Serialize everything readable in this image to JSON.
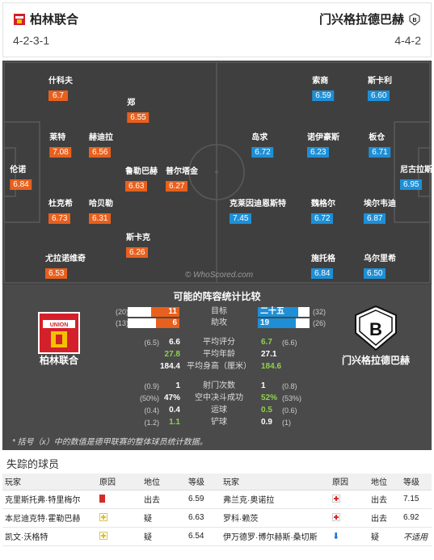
{
  "header": {
    "home_team": "柏林联合",
    "away_team": "门兴格拉德巴赫",
    "home_formation": "4-2-3-1",
    "away_formation": "4-4-2"
  },
  "pitch": {
    "watermark": "© WhoScored.com",
    "home_players": [
      {
        "name": "什科夫",
        "rating": "6.7"
      },
      {
        "name": "郑",
        "rating": "6.55"
      },
      {
        "name": "莱特",
        "rating": "7.08"
      },
      {
        "name": "赫迪拉",
        "rating": "6.56"
      },
      {
        "name": "伦诺",
        "rating": "6.84"
      },
      {
        "name": "鲁勒巴赫",
        "rating": "6.63"
      },
      {
        "name": "普尔塔金",
        "rating": "6.27"
      },
      {
        "name": "杜克希",
        "rating": "6.73"
      },
      {
        "name": "哈贝勒",
        "rating": "6.31"
      },
      {
        "name": "斯卡克",
        "rating": "6.26"
      },
      {
        "name": "尤拉诺维奇",
        "rating": "6.53"
      }
    ],
    "away_players": [
      {
        "name": "索商",
        "rating": "6.59"
      },
      {
        "name": "斯卡利",
        "rating": "6.60"
      },
      {
        "name": "岛求",
        "rating": "6.72"
      },
      {
        "name": "诺伊豪斯",
        "rating": "6.23"
      },
      {
        "name": "板仓",
        "rating": "6.71"
      },
      {
        "name": "尼古拉斯",
        "rating": "6.95"
      },
      {
        "name": "克莱因迪恩斯特",
        "rating": "7.45"
      },
      {
        "name": "魏格尔",
        "rating": "6.72"
      },
      {
        "name": "埃尔韦迪",
        "rating": "6.87"
      },
      {
        "name": "施托格",
        "rating": "6.84"
      },
      {
        "name": "乌尔里希",
        "rating": "6.50"
      }
    ]
  },
  "comparison": {
    "title": "可能的阵容统计比较",
    "home_label": "柏林联合",
    "away_label": "门兴格拉德巴赫",
    "bar_rows": [
      {
        "label": "目标",
        "home_paren": "(20)",
        "home_value": "11",
        "home_fraction": 0.55,
        "away_value": "二十五",
        "away_paren": "(32)",
        "away_fraction": 0.78
      },
      {
        "label": "助攻",
        "home_paren": "(13)",
        "home_value": "6",
        "home_fraction": 0.46,
        "away_value": "19",
        "away_paren": "(26)",
        "away_fraction": 0.73
      }
    ],
    "stat_rows": [
      {
        "label": "平均评分",
        "home_paren": "(6.5)",
        "home_value": "6.6",
        "home_green": false,
        "away_value": "6.7",
        "away_paren": "(6.6)",
        "away_green": true
      },
      {
        "label": "平均年龄",
        "home_paren": "",
        "home_value": "27.8",
        "home_green": true,
        "away_value": "27.1",
        "away_paren": "",
        "away_green": false
      },
      {
        "label": "平均身高（厘米）",
        "home_paren": "",
        "home_value": "184.4",
        "home_green": false,
        "away_value": "184.6",
        "away_paren": "",
        "away_green": true
      },
      {
        "label": "射门次数",
        "home_paren": "(0.9)",
        "home_value": "1",
        "home_green": false,
        "away_value": "1",
        "away_paren": "(0.8)",
        "away_green": false
      },
      {
        "label": "空中决斗成功",
        "home_paren": "(50%)",
        "home_value": "47%",
        "home_green": false,
        "away_value": "52%",
        "away_paren": "(53%)",
        "away_green": true
      },
      {
        "label": "运球",
        "home_paren": "(0.4)",
        "home_value": "0.4",
        "home_green": false,
        "away_value": "0.5",
        "away_paren": "(0.6)",
        "away_green": true
      },
      {
        "label": "铲球",
        "home_paren": "(1.2)",
        "home_value": "1.1",
        "home_green": true,
        "away_value": "0.9",
        "away_paren": "(1)",
        "away_green": false
      }
    ],
    "footnote": "* 括号（x）中的数值是德甲联赛的整体球员统计数据。"
  },
  "missing": {
    "title": "失踪的球员",
    "headers": [
      "玩家",
      "原因",
      "地位",
      "等级",
      "玩家",
      "原因",
      "地位",
      "等级"
    ],
    "rows": [
      {
        "home_player": "克里斯托弗·特里梅尔",
        "home_reason": "card",
        "home_status": "出去",
        "home_rating": "6.59",
        "away_player": "弗兰克·奥诺拉",
        "away_reason": "injury",
        "away_status": "出去",
        "away_rating": "7.15"
      },
      {
        "home_player": "本尼迪克特·霍勒巴赫",
        "home_reason": "doubt",
        "home_status": "疑",
        "home_rating": "6.63",
        "away_player": "罗科·赖茨",
        "away_reason": "injury",
        "away_status": "出去",
        "away_rating": "6.92"
      },
      {
        "home_player": "凯文·沃格特",
        "home_reason": "doubt",
        "home_status": "疑",
        "home_rating": "6.54",
        "away_player": "伊万德罗·博尔赫斯·桑切斯",
        "away_reason": "down",
        "away_status": "疑",
        "away_rating": "不适用"
      }
    ]
  },
  "colors": {
    "home_accent": "#e8601d",
    "away_accent": "#1e8fd6",
    "green": "#8fd14f",
    "pitch": "#3f3f3f"
  }
}
